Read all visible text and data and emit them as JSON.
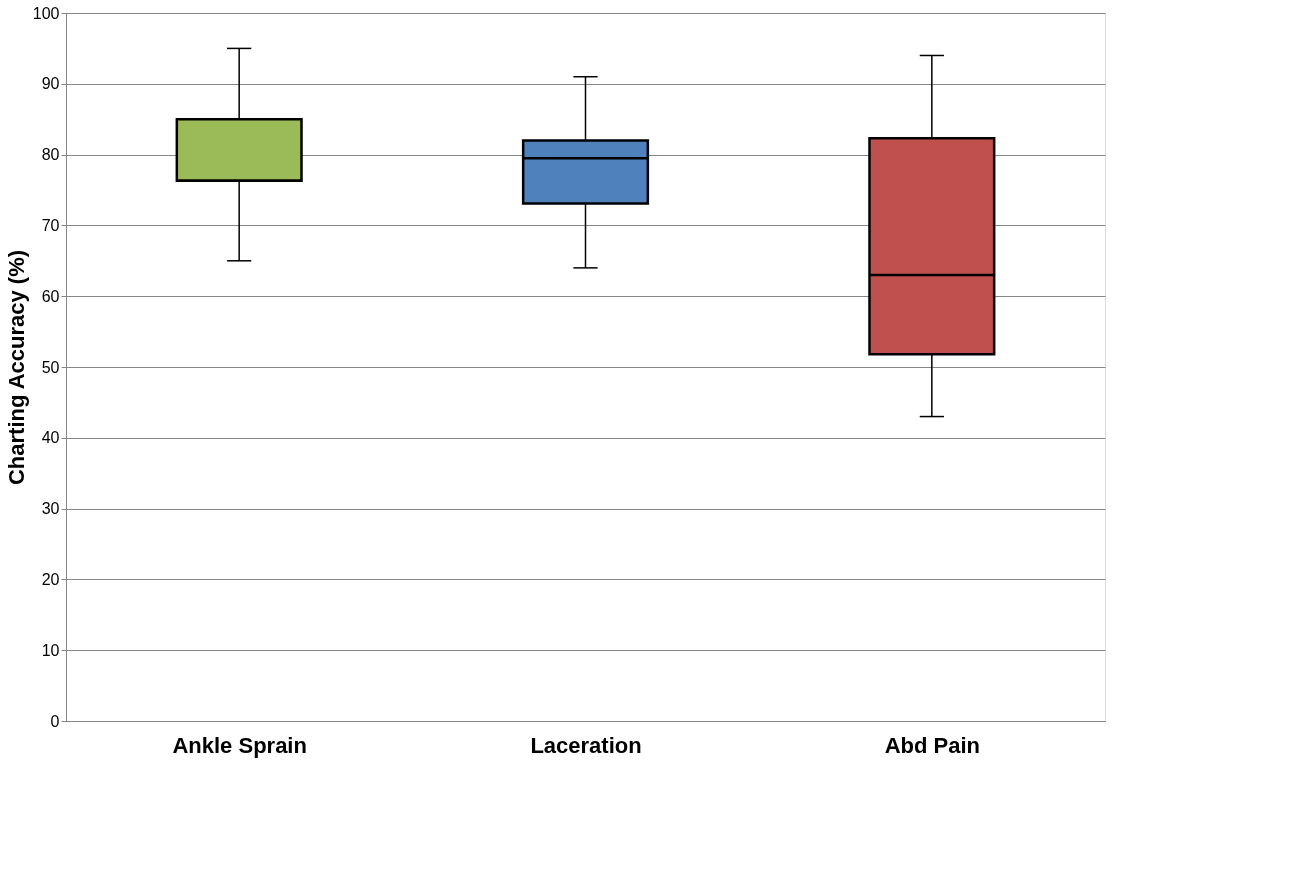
{
  "chart_data": {
    "type": "box",
    "ylabel": "Charting Accuracy (%)",
    "categories": [
      "Ankle Sprain",
      "Laceration",
      "Abd Pain"
    ],
    "boxes": [
      {
        "low": 65,
        "q1": 76.3,
        "median": 76.3,
        "q3": 85,
        "high": 95
      },
      {
        "low": 64,
        "q1": 73.1,
        "median": 79.5,
        "q3": 82,
        "high": 91
      },
      {
        "low": 43,
        "q1": 51.8,
        "median": 63,
        "q3": 82.3,
        "high": 94
      }
    ],
    "colors": [
      "#9bbb59",
      "#4f81bd",
      "#c0504d"
    ],
    "ylim": [
      0,
      100
    ],
    "yticks": [
      0,
      10,
      20,
      30,
      40,
      50,
      60,
      70,
      80,
      90,
      100
    ],
    "grid": "y",
    "legend": false
  }
}
